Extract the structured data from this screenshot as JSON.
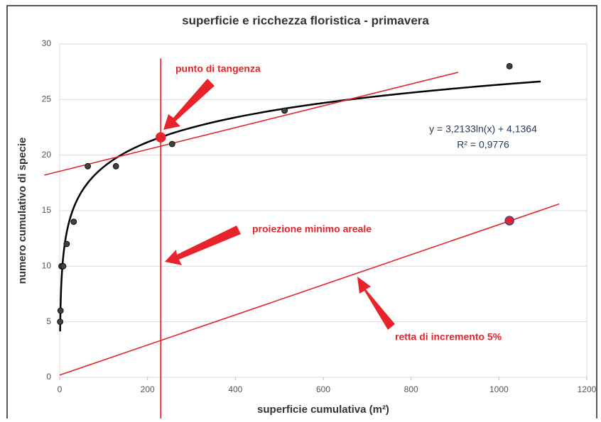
{
  "chart_data": {
    "type": "scatter",
    "title": "superficie e ricchezza floristica - primavera",
    "x_label": "superficie cumulativa (m²)",
    "y_label": "numero cumulativo di specie",
    "x": [
      1,
      2,
      4,
      8,
      16,
      32,
      64,
      128,
      256,
      512,
      1024
    ],
    "values": [
      5,
      6,
      10,
      10,
      12,
      14,
      19,
      19,
      21,
      24,
      28
    ],
    "color": "#404040",
    "xlim": [
      0,
      1200
    ],
    "xticks": [
      0,
      200,
      400,
      600,
      800,
      1000,
      1200
    ],
    "ylim": [
      0,
      30
    ],
    "yticks": [
      0,
      5,
      10,
      15,
      20,
      25,
      30
    ],
    "grid": true,
    "trendline": {
      "label": "y = 3,2133ln(x) + 4,1364",
      "r2_label": "R² = 0,9776",
      "coef": 3.2133,
      "intercept": 4.1364,
      "x_range": [
        1,
        1095
      ],
      "color": "#000000"
    },
    "annotation_lines": [
      {
        "x": [
          -35,
          907
        ],
        "y": [
          18.2,
          27.45
        ],
        "color": "#e0262b"
      },
      {
        "x": [
          230,
          230
        ],
        "y": [
          28.7,
          -3.7
        ],
        "color": "#e0262b"
      },
      {
        "x": [
          0,
          1137
        ],
        "y": [
          0.2,
          15.6
        ],
        "color": "#e0262b"
      }
    ],
    "special_points": [
      {
        "x": 230,
        "y": 21.6,
        "color": "#e8232a"
      },
      {
        "x": 1024,
        "y": 14.1,
        "color": "#e8232a"
      }
    ],
    "annotations": [
      "punto di tangenza",
      "proiezione minimo areale",
      "retta di incremento 5%"
    ]
  }
}
